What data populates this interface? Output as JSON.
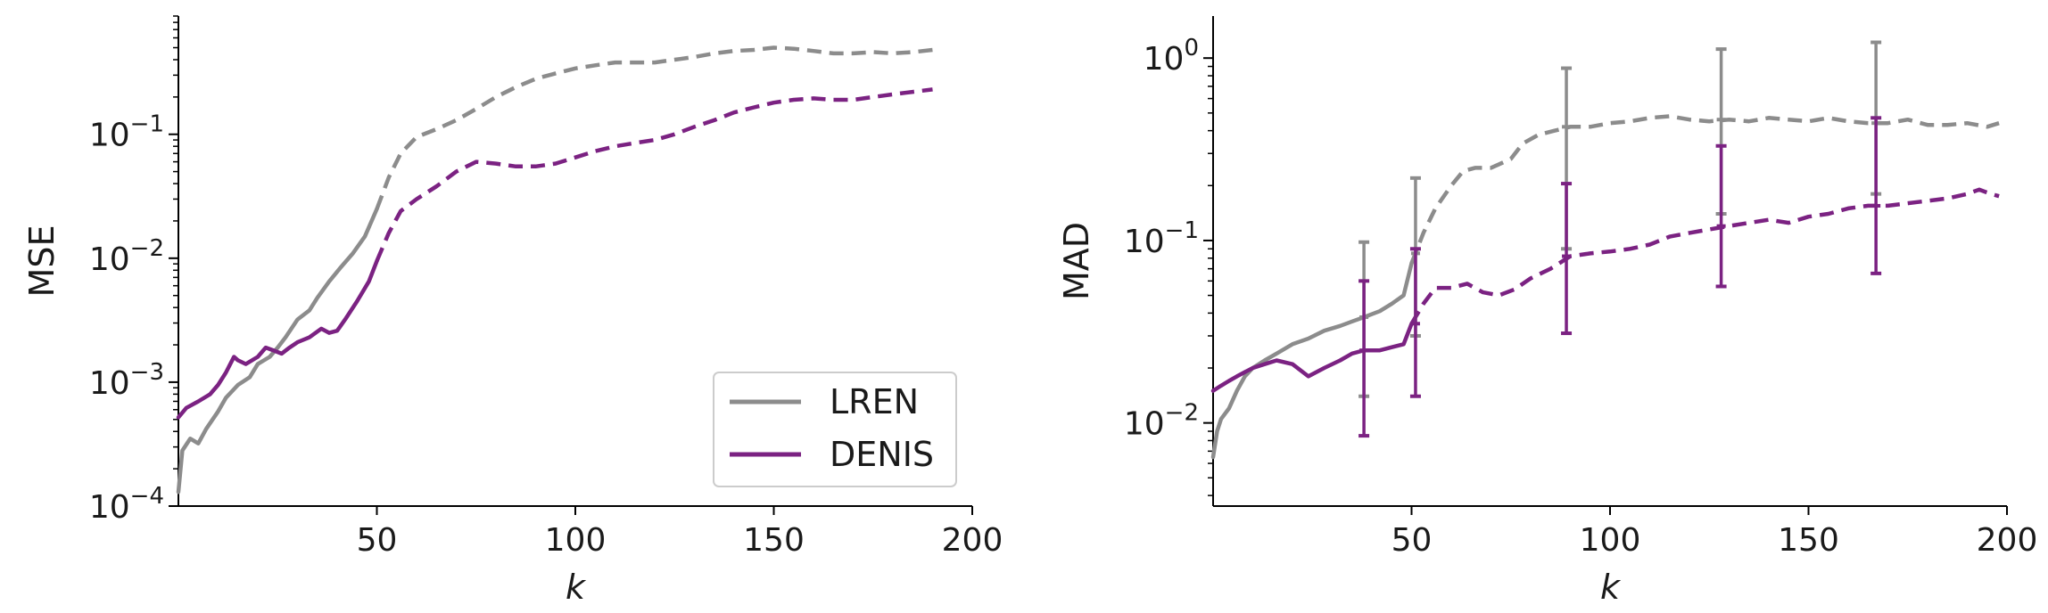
{
  "colors": {
    "LREN": "#8c8c8c",
    "DENIS": "#7b2282"
  },
  "legend": {
    "placement": "lower-right",
    "entries": [
      "LREN",
      "DENIS"
    ]
  },
  "chart_data": [
    {
      "type": "line",
      "xlabel": "k",
      "ylabel": "MSE",
      "xlim": [
        0,
        200
      ],
      "ylim": [
        0.0001,
        0.9
      ],
      "yscale": "log",
      "grid": false,
      "solid_until": 50,
      "xticks": [
        50,
        100,
        150,
        200
      ],
      "yticks": [
        {
          "value": 0.0001,
          "exp": "−4"
        },
        {
          "value": 0.001,
          "exp": "−3"
        },
        {
          "value": 0.01,
          "exp": "−2"
        },
        {
          "value": 0.1,
          "exp": "−1"
        }
      ],
      "series": [
        {
          "name": "LREN",
          "x": [
            0,
            1,
            3,
            5,
            7,
            10,
            12,
            15,
            18,
            20,
            23,
            25,
            27,
            30,
            33,
            35,
            38,
            41,
            44,
            47,
            50,
            53,
            56,
            60,
            65,
            70,
            75,
            80,
            85,
            90,
            95,
            100,
            105,
            110,
            115,
            120,
            125,
            130,
            135,
            140,
            145,
            150,
            155,
            160,
            165,
            170,
            175,
            180,
            185,
            190
          ],
          "y": [
            0.00013,
            0.00028,
            0.00035,
            0.00032,
            0.00042,
            0.00058,
            0.00075,
            0.00095,
            0.0011,
            0.0014,
            0.0016,
            0.0019,
            0.0023,
            0.0032,
            0.0038,
            0.0048,
            0.0065,
            0.0085,
            0.011,
            0.015,
            0.025,
            0.045,
            0.07,
            0.095,
            0.11,
            0.13,
            0.16,
            0.2,
            0.24,
            0.28,
            0.31,
            0.34,
            0.36,
            0.38,
            0.38,
            0.38,
            0.4,
            0.42,
            0.45,
            0.47,
            0.48,
            0.5,
            0.49,
            0.47,
            0.45,
            0.45,
            0.46,
            0.45,
            0.46,
            0.48
          ]
        },
        {
          "name": "DENIS",
          "x": [
            0,
            2,
            5,
            8,
            10,
            12,
            14,
            15,
            17,
            20,
            22,
            24,
            26,
            28,
            30,
            33,
            36,
            38,
            40,
            42,
            45,
            48,
            50,
            53,
            56,
            60,
            65,
            70,
            75,
            80,
            85,
            90,
            95,
            100,
            105,
            110,
            115,
            120,
            125,
            130,
            135,
            140,
            145,
            150,
            155,
            160,
            165,
            170,
            175,
            180,
            185,
            190
          ],
          "y": [
            0.00052,
            0.00062,
            0.0007,
            0.0008,
            0.00095,
            0.0012,
            0.0016,
            0.0015,
            0.0014,
            0.0016,
            0.0019,
            0.0018,
            0.0017,
            0.0019,
            0.0021,
            0.0023,
            0.0027,
            0.0025,
            0.0026,
            0.0032,
            0.0045,
            0.0065,
            0.0095,
            0.016,
            0.024,
            0.03,
            0.038,
            0.05,
            0.06,
            0.058,
            0.055,
            0.055,
            0.058,
            0.065,
            0.073,
            0.08,
            0.085,
            0.09,
            0.1,
            0.115,
            0.13,
            0.15,
            0.165,
            0.18,
            0.19,
            0.195,
            0.19,
            0.19,
            0.2,
            0.21,
            0.22,
            0.23
          ]
        }
      ]
    },
    {
      "type": "line",
      "xlabel": "k",
      "ylabel": "MAD",
      "xlim": [
        0,
        200
      ],
      "ylim": [
        0.0035,
        1.7
      ],
      "yscale": "log",
      "grid": false,
      "solid_until": 50,
      "xticks": [
        50,
        100,
        150,
        200
      ],
      "yticks": [
        {
          "value": 0.01,
          "exp": "−2"
        },
        {
          "value": 0.1,
          "exp": "−1"
        },
        {
          "value": 1,
          "exp": "0"
        }
      ],
      "series": [
        {
          "name": "LREN",
          "x": [
            0,
            1,
            2,
            4,
            6,
            8,
            10,
            13,
            16,
            20,
            24,
            28,
            32,
            35,
            38,
            42,
            45,
            48,
            50,
            53,
            56,
            60,
            63,
            66,
            70,
            75,
            78,
            82,
            86,
            90,
            95,
            100,
            105,
            110,
            115,
            120,
            125,
            130,
            135,
            140,
            145,
            150,
            155,
            160,
            165,
            170,
            175,
            180,
            185,
            190,
            195,
            198
          ],
          "y": [
            0.0065,
            0.009,
            0.0105,
            0.012,
            0.015,
            0.018,
            0.02,
            0.022,
            0.024,
            0.027,
            0.029,
            0.032,
            0.034,
            0.036,
            0.038,
            0.041,
            0.045,
            0.05,
            0.075,
            0.11,
            0.15,
            0.2,
            0.24,
            0.25,
            0.25,
            0.28,
            0.34,
            0.38,
            0.4,
            0.42,
            0.42,
            0.44,
            0.45,
            0.47,
            0.48,
            0.46,
            0.45,
            0.46,
            0.45,
            0.47,
            0.46,
            0.45,
            0.47,
            0.45,
            0.44,
            0.44,
            0.46,
            0.43,
            0.43,
            0.44,
            0.42,
            0.44
          ]
        },
        {
          "name": "DENIS",
          "x": [
            0,
            2,
            4,
            6,
            8,
            10,
            13,
            16,
            20,
            24,
            28,
            32,
            35,
            38,
            42,
            45,
            48,
            50,
            53,
            56,
            60,
            64,
            68,
            72,
            76,
            80,
            85,
            90,
            95,
            100,
            105,
            110,
            115,
            120,
            125,
            130,
            135,
            140,
            145,
            150,
            155,
            160,
            165,
            170,
            175,
            180,
            185,
            190,
            193,
            196,
            198
          ],
          "y": [
            0.015,
            0.016,
            0.017,
            0.018,
            0.019,
            0.02,
            0.021,
            0.022,
            0.021,
            0.018,
            0.02,
            0.022,
            0.024,
            0.025,
            0.025,
            0.026,
            0.027,
            0.035,
            0.045,
            0.055,
            0.055,
            0.058,
            0.052,
            0.05,
            0.054,
            0.062,
            0.07,
            0.082,
            0.085,
            0.087,
            0.09,
            0.095,
            0.105,
            0.11,
            0.115,
            0.12,
            0.125,
            0.13,
            0.125,
            0.135,
            0.14,
            0.15,
            0.155,
            0.155,
            0.16,
            0.165,
            0.17,
            0.18,
            0.19,
            0.18,
            0.175
          ]
        }
      ],
      "error_bars": [
        {
          "series": "LREN",
          "x": 38,
          "center": 0.038,
          "low": 0.014,
          "high": 0.098
        },
        {
          "series": "DENIS",
          "x": 38,
          "center": 0.025,
          "low": 0.0085,
          "high": 0.06
        },
        {
          "series": "LREN",
          "x": 51,
          "center": 0.085,
          "low": 0.03,
          "high": 0.22
        },
        {
          "series": "DENIS",
          "x": 51,
          "center": 0.035,
          "low": 0.014,
          "high": 0.09
        },
        {
          "series": "LREN",
          "x": 89,
          "center": 0.42,
          "low": 0.09,
          "high": 0.88
        },
        {
          "series": "DENIS",
          "x": 89,
          "center": 0.082,
          "low": 0.031,
          "high": 0.205
        },
        {
          "series": "LREN",
          "x": 128,
          "center": 0.46,
          "low": 0.14,
          "high": 1.12
        },
        {
          "series": "DENIS",
          "x": 128,
          "center": 0.12,
          "low": 0.056,
          "high": 0.33
        },
        {
          "series": "LREN",
          "x": 167,
          "center": 0.44,
          "low": 0.18,
          "high": 1.22
        },
        {
          "series": "DENIS",
          "x": 167,
          "center": 0.155,
          "low": 0.066,
          "high": 0.47
        }
      ]
    }
  ]
}
